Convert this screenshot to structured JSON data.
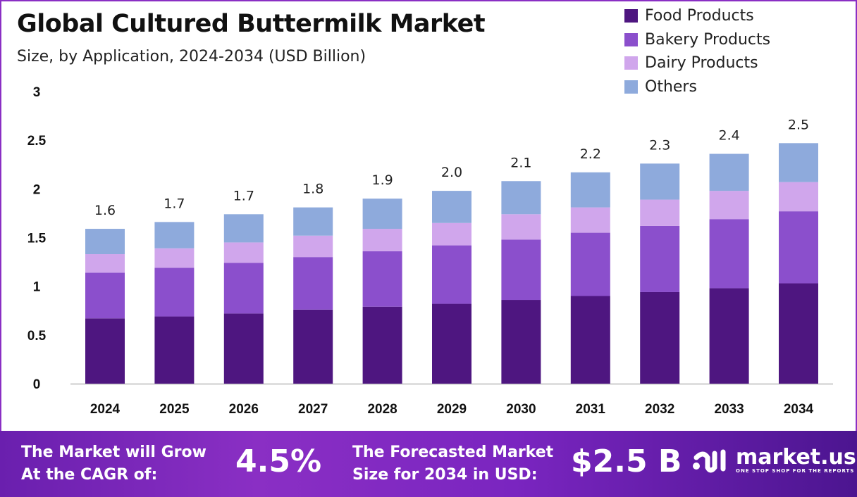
{
  "chart_data": {
    "type": "bar",
    "stacked": true,
    "title": "Global Cultured Buttermilk Market",
    "subtitle": "Size, by Application, 2024-2034 (USD Billion)",
    "xlabel": "",
    "ylabel": "",
    "ylim": [
      0,
      3
    ],
    "yticks": [
      "0",
      "0.5",
      "1",
      "1.5",
      "2",
      "2.5",
      "3"
    ],
    "grid": false,
    "legend_position": "top-right",
    "categories": [
      "2024",
      "2025",
      "2026",
      "2027",
      "2028",
      "2029",
      "2030",
      "2031",
      "2032",
      "2033",
      "2034"
    ],
    "series": [
      {
        "name": "Food Products",
        "color": "#4e1680",
        "values": [
          0.67,
          0.69,
          0.72,
          0.76,
          0.79,
          0.82,
          0.86,
          0.9,
          0.94,
          0.98,
          1.03
        ]
      },
      {
        "name": "Bakery Products",
        "color": "#8b4fcc",
        "values": [
          0.47,
          0.5,
          0.52,
          0.54,
          0.57,
          0.6,
          0.62,
          0.65,
          0.68,
          0.71,
          0.74
        ]
      },
      {
        "name": "Dairy Products",
        "color": "#d0a6ec",
        "values": [
          0.19,
          0.2,
          0.21,
          0.22,
          0.23,
          0.23,
          0.26,
          0.26,
          0.27,
          0.29,
          0.3
        ]
      },
      {
        "name": "Others",
        "color": "#8eaadc",
        "values": [
          0.26,
          0.27,
          0.29,
          0.29,
          0.31,
          0.33,
          0.34,
          0.36,
          0.37,
          0.38,
          0.4
        ]
      }
    ],
    "total_labels": [
      "1.6",
      "1.7",
      "1.7",
      "1.8",
      "1.9",
      "2.0",
      "2.1",
      "2.2",
      "2.3",
      "2.4",
      "2.5"
    ]
  },
  "footer": {
    "cagr_label": [
      "The Market will Grow",
      "At the CAGR of:"
    ],
    "cagr_value": "4.5%",
    "forecast_label": [
      "The Forecasted Market",
      "Size for 2034 in USD:"
    ],
    "forecast_value": "$2.5 B",
    "logo_name": "market.us",
    "logo_tagline": "ONE STOP SHOP FOR THE REPORTS"
  }
}
